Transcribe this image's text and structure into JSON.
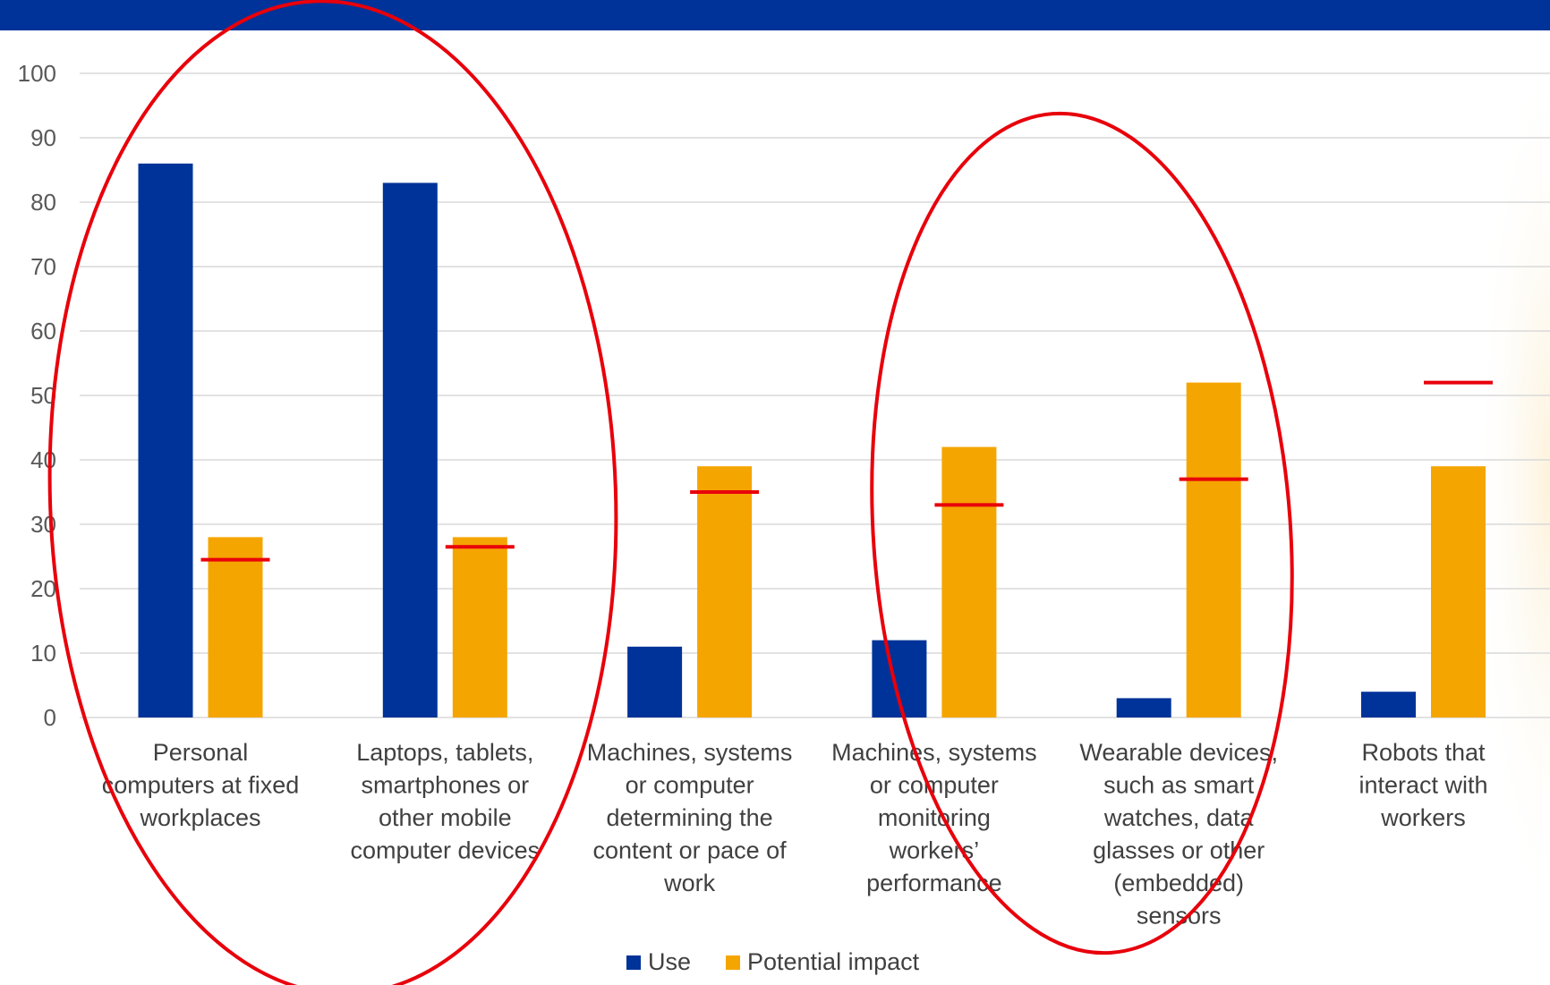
{
  "chart_data": {
    "type": "bar",
    "categories": [
      [
        "Personal",
        "computers at fixed",
        "workplaces"
      ],
      [
        "Laptops, tablets,",
        "smartphones or",
        "other mobile",
        "computer devices"
      ],
      [
        "Machines, systems",
        "or computer",
        "determining the",
        "content or pace of",
        "work"
      ],
      [
        "Machines, systems",
        "or computer",
        "monitoring",
        "workers’",
        "performance"
      ],
      [
        "Wearable devices,",
        "such as smart",
        "watches, data",
        "glasses or other",
        "(embedded)",
        "sensors"
      ],
      [
        "Robots that",
        "interact with",
        "workers"
      ]
    ],
    "series": [
      {
        "name": "Use",
        "color": "#003399",
        "values": [
          86,
          83,
          11,
          12,
          3,
          4
        ]
      },
      {
        "name": "Potential impact",
        "color": "#F5A500",
        "values": [
          28,
          28,
          39,
          42,
          52,
          39
        ]
      }
    ],
    "red_markers": [
      24.5,
      26.5,
      35,
      33,
      37,
      52
    ],
    "y_ticks": [
      0,
      10,
      20,
      30,
      40,
      50,
      60,
      70,
      80,
      90,
      100
    ],
    "ylim": [
      0,
      100
    ],
    "grid": true,
    "legend_position": "bottom",
    "annotation_color": "#E8000B",
    "gridline_color": "#D9D9D9"
  }
}
